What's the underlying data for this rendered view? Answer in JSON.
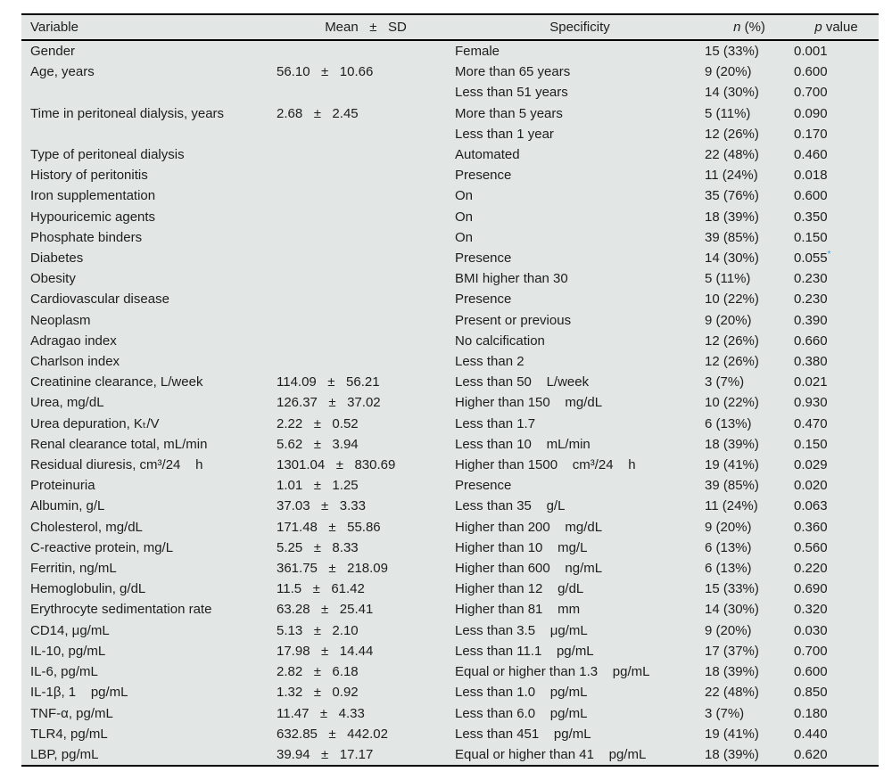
{
  "colors": {
    "table-bg": "#e2e7e6",
    "border": "#000000",
    "text": "#1d1d1d",
    "star": "#3a9fd8"
  },
  "table": {
    "header": {
      "variable": "Variable",
      "mean_sd": "Mean   ±   SD",
      "specificity": "Specificity",
      "n_italic": "n",
      "n_rest": " (%)",
      "p_italic": "p",
      "p_rest": " value"
    },
    "rows": [
      {
        "variable": "Gender",
        "mean_sd": "",
        "specificity": "Female",
        "n_percent": "15 (33%)",
        "p_value": "0.001",
        "star": ""
      },
      {
        "variable": "Age, years",
        "mean_sd": "56.10   ±   10.66",
        "specificity": "More than 65 years",
        "n_percent": "9 (20%)",
        "p_value": "0.600",
        "star": ""
      },
      {
        "variable": "",
        "mean_sd": "",
        "specificity": "Less than 51 years",
        "n_percent": "14 (30%)",
        "p_value": "0.700",
        "star": ""
      },
      {
        "variable": "Time in peritoneal dialysis, years",
        "mean_sd": "2.68   ±   2.45",
        "specificity": "More than 5 years",
        "n_percent": "5 (11%)",
        "p_value": "0.090",
        "star": ""
      },
      {
        "variable": "",
        "mean_sd": "",
        "specificity": "Less than 1 year",
        "n_percent": "12 (26%)",
        "p_value": "0.170",
        "star": ""
      },
      {
        "variable": "Type of peritoneal dialysis",
        "mean_sd": "",
        "specificity": "Automated",
        "n_percent": "22 (48%)",
        "p_value": "0.460",
        "star": ""
      },
      {
        "variable": "History of peritonitis",
        "mean_sd": "",
        "specificity": "Presence",
        "n_percent": "11 (24%)",
        "p_value": "0.018",
        "star": ""
      },
      {
        "variable": "Iron supplementation",
        "mean_sd": "",
        "specificity": "On",
        "n_percent": "35 (76%)",
        "p_value": "0.600",
        "star": ""
      },
      {
        "variable": "Hypouricemic agents",
        "mean_sd": "",
        "specificity": "On",
        "n_percent": "18 (39%)",
        "p_value": "0.350",
        "star": ""
      },
      {
        "variable": "Phosphate binders",
        "mean_sd": "",
        "specificity": "On",
        "n_percent": "39 (85%)",
        "p_value": "0.150",
        "star": ""
      },
      {
        "variable": "Diabetes",
        "mean_sd": "",
        "specificity": "Presence",
        "n_percent": "14 (30%)",
        "p_value": "0.055",
        "star": "*"
      },
      {
        "variable": "Obesity",
        "mean_sd": "",
        "specificity": "BMI higher than 30",
        "n_percent": "5 (11%)",
        "p_value": "0.230",
        "star": ""
      },
      {
        "variable": "Cardiovascular disease",
        "mean_sd": "",
        "specificity": "Presence",
        "n_percent": "10 (22%)",
        "p_value": "0.230",
        "star": ""
      },
      {
        "variable": "Neoplasm",
        "mean_sd": "",
        "specificity": "Present or previous",
        "n_percent": "9 (20%)",
        "p_value": "0.390",
        "star": ""
      },
      {
        "variable": "Adragao index",
        "mean_sd": "",
        "specificity": "No calcification",
        "n_percent": "12 (26%)",
        "p_value": "0.660",
        "star": ""
      },
      {
        "variable": "Charlson index",
        "mean_sd": "",
        "specificity": "Less than 2",
        "n_percent": "12 (26%)",
        "p_value": "0.380",
        "star": ""
      },
      {
        "variable": "Creatinine clearance, L/week",
        "mean_sd": "114.09   ±   56.21",
        "specificity": "Less than 50    L/week",
        "n_percent": "3 (7%)",
        "p_value": "0.021",
        "star": ""
      },
      {
        "variable": "Urea, mg/dL",
        "mean_sd": "126.37   ±   37.02",
        "specificity": "Higher than 150    mg/dL",
        "n_percent": "10 (22%)",
        "p_value": "0.930",
        "star": ""
      },
      {
        "variable": "Urea depuration, Kₜ/V",
        "mean_sd": "2.22   ±   0.52",
        "specificity": "Less than 1.7",
        "n_percent": "6 (13%)",
        "p_value": "0.470",
        "star": ""
      },
      {
        "variable": "Renal clearance total, mL/min",
        "mean_sd": "5.62   ±   3.94",
        "specificity": "Less than 10    mL/min",
        "n_percent": "18 (39%)",
        "p_value": "0.150",
        "star": ""
      },
      {
        "variable": "Residual diuresis, cm³/24    h",
        "mean_sd": "1301.04   ±   830.69",
        "specificity": "Higher than 1500    cm³/24    h",
        "n_percent": "19 (41%)",
        "p_value": "0.029",
        "star": ""
      },
      {
        "variable": "Proteinuria",
        "mean_sd": "1.01   ±   1.25",
        "specificity": "Presence",
        "n_percent": "39 (85%)",
        "p_value": "0.020",
        "star": ""
      },
      {
        "variable": "Albumin, g/L",
        "mean_sd": "37.03   ±   3.33",
        "specificity": "Less than 35    g/L",
        "n_percent": "11 (24%)",
        "p_value": "0.063",
        "star": ""
      },
      {
        "variable": "Cholesterol, mg/dL",
        "mean_sd": "171.48   ±   55.86",
        "specificity": "Higher than 200    mg/dL",
        "n_percent": "9 (20%)",
        "p_value": "0.360",
        "star": ""
      },
      {
        "variable": "C-reactive protein, mg/L",
        "mean_sd": "5.25   ±   8.33",
        "specificity": "Higher than 10    mg/L",
        "n_percent": "6 (13%)",
        "p_value": "0.560",
        "star": ""
      },
      {
        "variable": "Ferritin, ng/mL",
        "mean_sd": "361.75   ±   218.09",
        "specificity": "Higher than 600    ng/mL",
        "n_percent": "6 (13%)",
        "p_value": "0.220",
        "star": ""
      },
      {
        "variable": "Hemoglobulin, g/dL",
        "mean_sd": "11.5   ±   61.42",
        "specificity": "Higher than 12    g/dL",
        "n_percent": "15 (33%)",
        "p_value": "0.690",
        "star": ""
      },
      {
        "variable": "Erythrocyte sedimentation rate",
        "mean_sd": "63.28   ±   25.41",
        "specificity": "Higher than 81    mm",
        "n_percent": "14 (30%)",
        "p_value": "0.320",
        "star": ""
      },
      {
        "variable": "CD14, μg/mL",
        "mean_sd": "5.13   ±   2.10",
        "specificity": "Less than 3.5    μg/mL",
        "n_percent": "9 (20%)",
        "p_value": "0.030",
        "star": ""
      },
      {
        "variable": "IL-10, pg/mL",
        "mean_sd": "17.98   ±   14.44",
        "specificity": "Less than 11.1    pg/mL",
        "n_percent": "17 (37%)",
        "p_value": "0.700",
        "star": ""
      },
      {
        "variable": "IL-6, pg/mL",
        "mean_sd": "2.82   ±   6.18",
        "specificity": "Equal or higher than 1.3    pg/mL",
        "n_percent": "18 (39%)",
        "p_value": "0.600",
        "star": ""
      },
      {
        "variable": "IL-1β, 1    pg/mL",
        "mean_sd": "1.32   ±   0.92",
        "specificity": "Less than 1.0    pg/mL",
        "n_percent": "22 (48%)",
        "p_value": "0.850",
        "star": ""
      },
      {
        "variable": "TNF-α, pg/mL",
        "mean_sd": "11.47   ±   4.33",
        "specificity": "Less than 6.0    pg/mL",
        "n_percent": "3 (7%)",
        "p_value": "0.180",
        "star": ""
      },
      {
        "variable": "TLR4, pg/mL",
        "mean_sd": "632.85   ±   442.02",
        "specificity": "Less than 451    pg/mL",
        "n_percent": "19 (41%)",
        "p_value": "0.440",
        "star": ""
      },
      {
        "variable": "LBP, pg/mL",
        "mean_sd": "39.94   ±   17.17",
        "specificity": "Equal or higher than 41    pg/mL",
        "n_percent": "18 (39%)",
        "p_value": "0.620",
        "star": ""
      }
    ]
  }
}
